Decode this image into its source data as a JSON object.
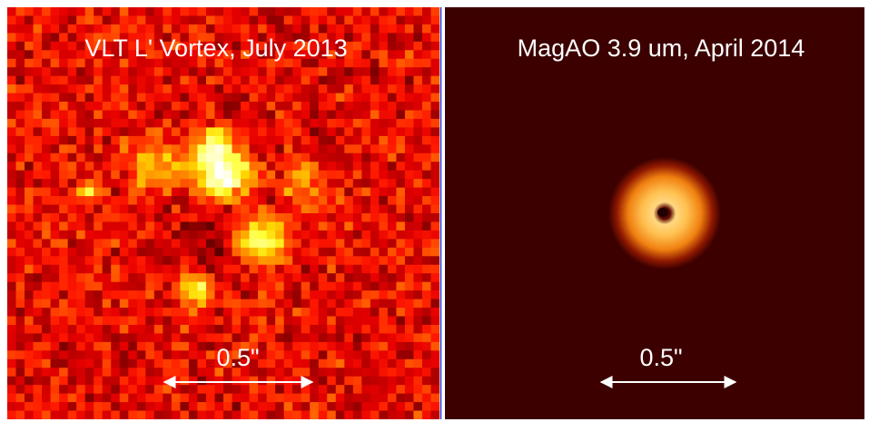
{
  "panels": [
    {
      "title": "VLT L' Vortex, July 2013",
      "scale_label": "0.5\""
    },
    {
      "title": "MagAO 3.9 um, April 2014",
      "scale_label": "0.5\""
    }
  ]
}
